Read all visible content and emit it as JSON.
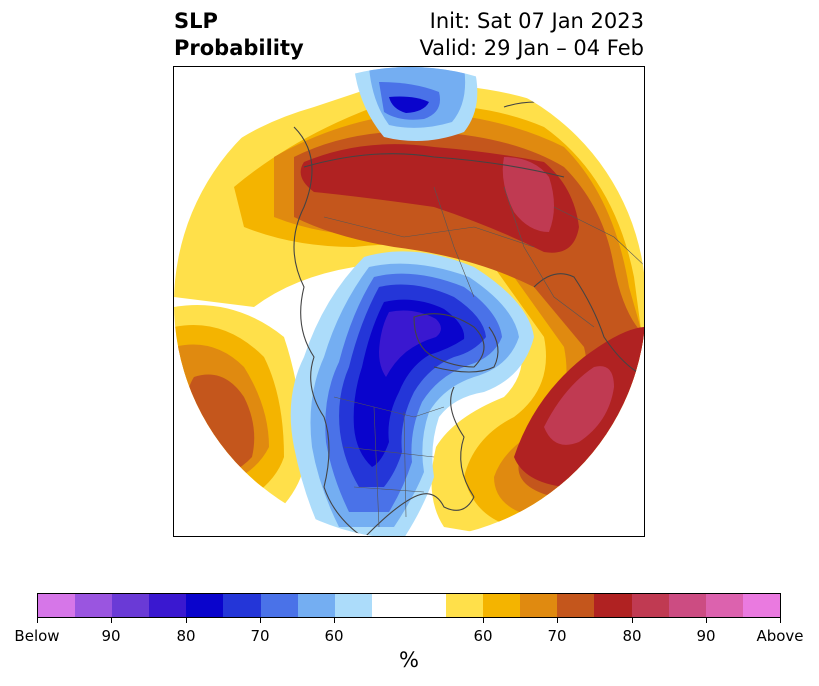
{
  "title": {
    "left_line1": "SLP",
    "left_line2": "Probability",
    "right_line1": "Init: Sat 07 Jan 2023",
    "right_line2": "Valid: 29 Jan – 04 Feb"
  },
  "colorbar": {
    "unit": "%",
    "colors": [
      "#d676e8",
      "#9a55e0",
      "#6a3ad6",
      "#3a18d0",
      "#0a04cc",
      "#2436d8",
      "#4a72e8",
      "#74aef2",
      "#acdcfa",
      "#ffffff",
      "#ffe04a",
      "#f4b400",
      "#e08a10",
      "#c4561c",
      "#b02222",
      "#c03a52",
      "#cc4c82",
      "#dc62ae",
      "#ea7ae0"
    ],
    "tick_labels": [
      "Below",
      "90",
      "80",
      "70",
      "60",
      "60",
      "70",
      "80",
      "90",
      "Above"
    ]
  },
  "map": {
    "projection": "north-polar-stereographic",
    "features": [
      "coastlines",
      "country-borders",
      "state-province-borders"
    ]
  }
}
